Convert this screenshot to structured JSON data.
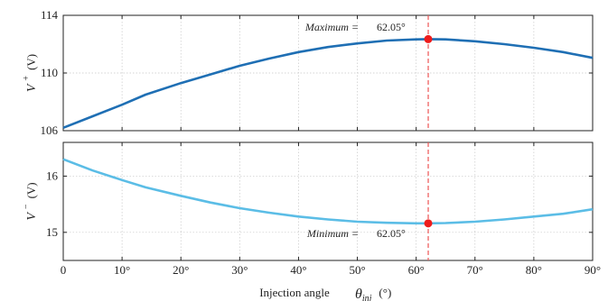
{
  "chart_data": [
    {
      "type": "line",
      "panel": "top",
      "ylabel": {
        "symbol": "V",
        "sup": "+",
        "unit": "(V)"
      },
      "ylim": [
        106,
        114
      ],
      "yticks": [
        "106",
        "110",
        "114"
      ],
      "ytick_values": [
        106,
        110,
        114
      ],
      "xlim": [
        0,
        90
      ],
      "grid": true,
      "series": [
        {
          "color": "#1f6fb4",
          "x": [
            0,
            5,
            10,
            14,
            20,
            25,
            30,
            35,
            40,
            45,
            50,
            55,
            60,
            62.05,
            65,
            70,
            75,
            80,
            85,
            90
          ],
          "y": [
            106.2,
            107.0,
            107.8,
            108.5,
            109.3,
            109.9,
            110.5,
            111.0,
            111.45,
            111.8,
            112.05,
            112.25,
            112.33,
            112.35,
            112.33,
            112.2,
            112.0,
            111.75,
            111.45,
            111.05
          ]
        }
      ],
      "annotation": {
        "label": "Maximum =",
        "value": "62.05°",
        "x": 62.05,
        "y": 112.35
      }
    },
    {
      "type": "line",
      "panel": "bottom",
      "ylabel": {
        "symbol": "V",
        "sup": "−",
        "unit": "(V)"
      },
      "ylim": [
        14.5,
        16.6
      ],
      "yticks": [
        "15",
        "16"
      ],
      "ytick_values": [
        15,
        16
      ],
      "xlim": [
        0,
        90
      ],
      "xticks": [
        "0",
        "10°",
        "20°",
        "30°",
        "40°",
        "50°",
        "60°",
        "70°",
        "80°",
        "90°"
      ],
      "xtick_values": [
        0,
        10,
        20,
        30,
        40,
        50,
        60,
        70,
        80,
        90
      ],
      "xlabel": {
        "text": "Injection angle",
        "symbol": "θ",
        "sub": "inj",
        "unit": "(°)"
      },
      "grid": true,
      "series": [
        {
          "color": "#5bbde6",
          "x": [
            0,
            5,
            10,
            14,
            20,
            25,
            30,
            35,
            40,
            45,
            50,
            55,
            60,
            62.05,
            65,
            70,
            75,
            80,
            85,
            90
          ],
          "y": [
            16.3,
            16.1,
            15.93,
            15.8,
            15.65,
            15.53,
            15.43,
            15.35,
            15.28,
            15.23,
            15.19,
            15.17,
            15.16,
            15.16,
            15.165,
            15.19,
            15.23,
            15.28,
            15.33,
            15.41
          ]
        }
      ],
      "annotation": {
        "label": "Minimum =",
        "value": "62.05°",
        "x": 62.05,
        "y": 15.16
      }
    }
  ],
  "colors": {
    "marker": "#ee1c1c",
    "vline": "#ee5555",
    "grid": "#c8c8c8"
  }
}
